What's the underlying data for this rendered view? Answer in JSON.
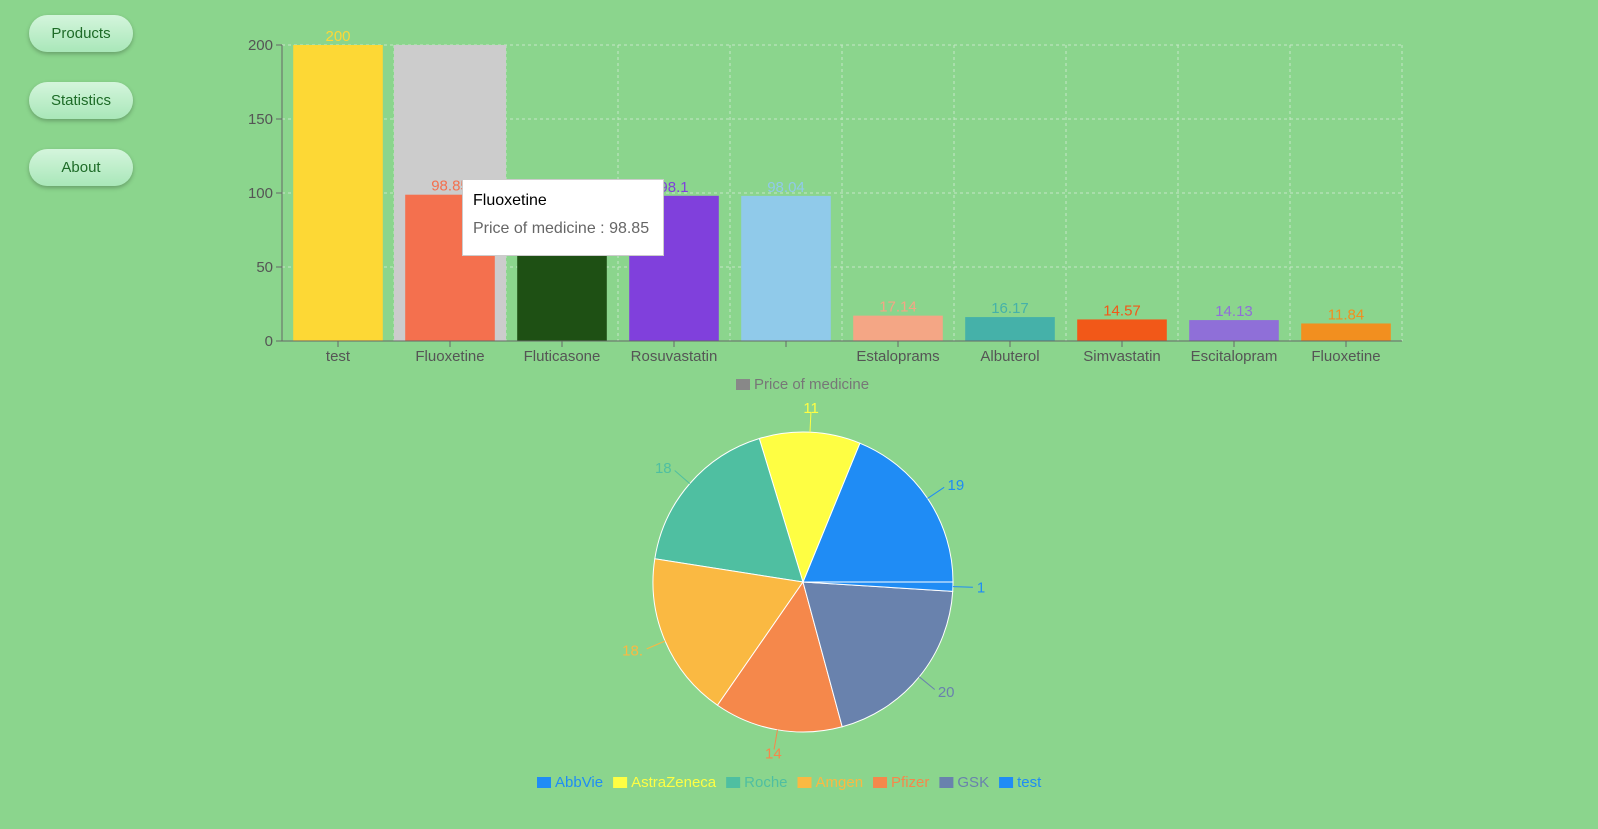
{
  "nav": {
    "items": [
      "Products",
      "Statistics",
      "About"
    ]
  },
  "tooltip": {
    "title": "Fluoxetine",
    "label": "Price of medicine",
    "value": "98.85"
  },
  "chart_data": [
    {
      "type": "bar",
      "categories": [
        "test",
        "Fluoxetine",
        "Fluticasone",
        "Rosuvastatin",
        "",
        "Estaloprams",
        "Albuterol",
        "Simvastatin",
        "Escitalopram",
        "Fluoxetine"
      ],
      "series": [
        {
          "name": "Price of medicine",
          "values": [
            200,
            98.85,
            98.5,
            98.1,
            98.04,
            17.14,
            16.17,
            14.57,
            14.13,
            11.84
          ]
        }
      ],
      "value_labels": [
        "200",
        "98.85",
        "98.5",
        "98.1",
        "98.04",
        "17.14",
        "16.17",
        "14.57",
        "14.13",
        "11.84"
      ],
      "colors": [
        "#fdd835",
        "#f4704e",
        "#1e5014",
        "#8040dc",
        "#90caea",
        "#f4a685",
        "#45b1a9",
        "#f25818",
        "#8f6fd8",
        "#f28f1f"
      ],
      "yticks": [
        0,
        50,
        100,
        150,
        200
      ],
      "ylim": [
        0,
        200
      ],
      "grid": true,
      "legend": "bottom",
      "legend_color": "#888888",
      "hovered_index": 1
    },
    {
      "type": "pie",
      "labels": [
        "AbbVie",
        "AstraZeneca",
        "Roche",
        "Amgen",
        "Pfizer",
        "GSK",
        "test"
      ],
      "values": [
        19,
        11,
        18,
        18,
        14,
        20,
        1
      ],
      "value_labels": [
        "19",
        "11",
        "18",
        "18.",
        "14",
        "20",
        "1"
      ],
      "colors": [
        "#1f8cf5",
        "#fefe43",
        "#4fbfa1",
        "#fab942",
        "#f5884b",
        "#6982ad",
        "#1f8cf5"
      ],
      "legend": "bottom"
    }
  ]
}
